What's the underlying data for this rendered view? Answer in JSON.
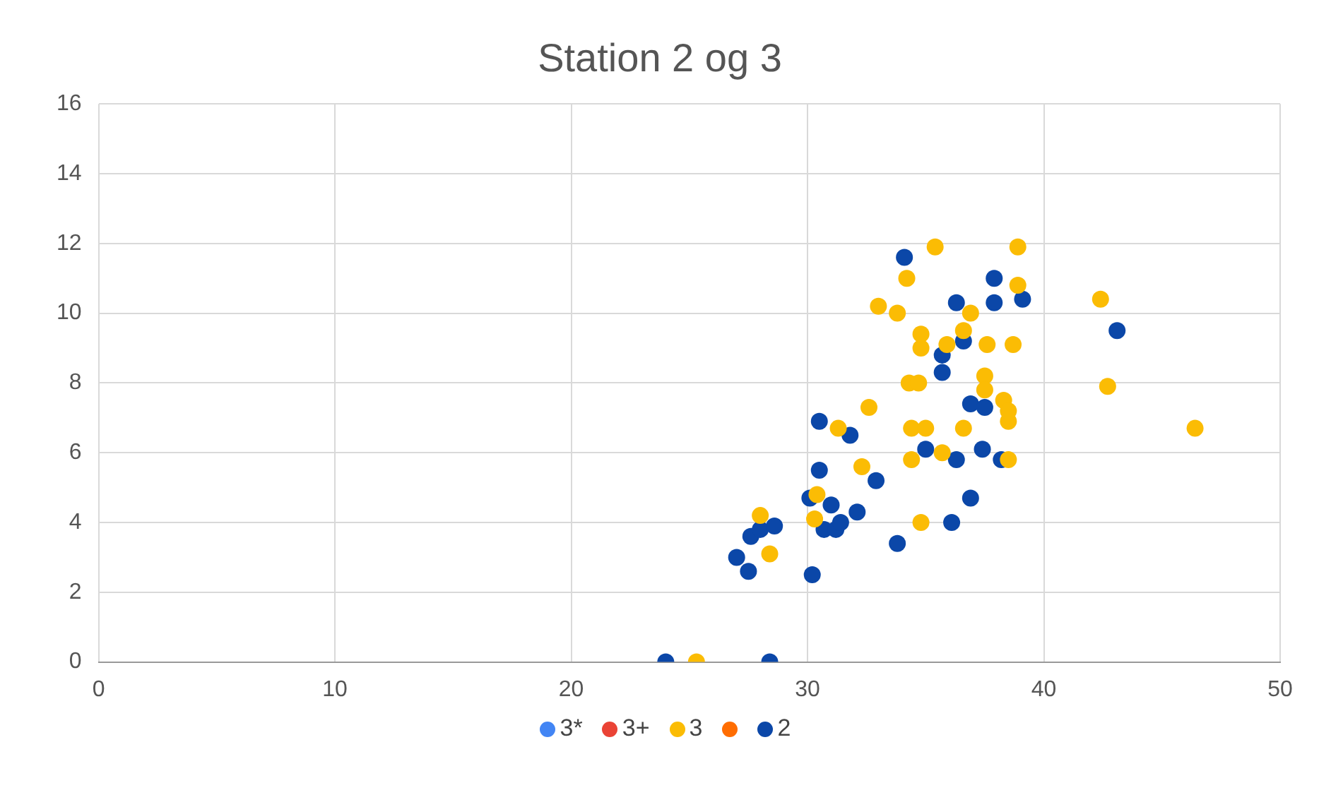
{
  "chart_data": {
    "type": "scatter",
    "title": "Station 2 og 3",
    "xlim": [
      0,
      50
    ],
    "xticks": [
      0,
      10,
      20,
      30,
      40,
      50
    ],
    "ylim": [
      0,
      16
    ],
    "yticks": [
      0,
      2,
      4,
      6,
      8,
      10,
      12,
      14,
      16
    ],
    "grid": true,
    "legend": "bottom",
    "marker": "circle",
    "series": [
      {
        "name": "3*",
        "color": "#4285f4"
      },
      {
        "name": "3+",
        "color": "#ea4335"
      },
      {
        "name": "3",
        "color": "#fbbc04",
        "x": [
          25.3,
          28.4,
          28.0,
          30.3,
          30.4,
          31.3,
          32.3,
          32.6,
          33.0,
          33.8,
          34.2,
          35.4,
          34.4,
          34.4,
          34.3,
          34.7,
          34.8,
          34.8,
          34.8,
          35.0,
          35.7,
          35.9,
          36.6,
          36.6,
          36.9,
          37.6,
          37.5,
          37.5,
          38.3,
          38.5,
          38.5,
          38.5,
          38.9,
          38.9,
          38.7,
          42.4,
          42.7,
          46.4
        ],
        "values": [
          0,
          3.1,
          4.2,
          4.1,
          4.8,
          6.7,
          5.6,
          7.3,
          10.2,
          10.0,
          11.0,
          11.9,
          6.7,
          5.8,
          8.0,
          8.0,
          9.0,
          9.4,
          4.0,
          6.7,
          6.0,
          9.1,
          6.7,
          9.5,
          10.0,
          9.1,
          8.2,
          7.8,
          7.5,
          6.9,
          7.2,
          5.8,
          11.9,
          10.8,
          9.1,
          10.4,
          7.9,
          6.7
        ]
      },
      {
        "color": "#ff6d01"
      },
      {
        "name": "2",
        "color": "#0b47a8",
        "x": [
          24.0,
          28.4,
          27.0,
          27.5,
          27.6,
          28.0,
          28.6,
          30.2,
          30.1,
          30.5,
          30.5,
          30.7,
          31.0,
          31.2,
          31.4,
          32.1,
          31.8,
          32.9,
          33.8,
          34.1,
          35.0,
          35.7,
          35.7,
          36.1,
          36.3,
          36.3,
          36.6,
          36.9,
          36.9,
          37.4,
          37.5,
          37.9,
          37.9,
          38.2,
          39.1,
          43.1
        ],
        "values": [
          0,
          0,
          3.0,
          2.6,
          3.6,
          3.8,
          3.9,
          2.5,
          4.7,
          6.9,
          5.5,
          3.8,
          4.5,
          3.8,
          4.0,
          4.3,
          6.5,
          5.2,
          3.4,
          11.6,
          6.1,
          8.8,
          8.3,
          4.0,
          5.8,
          10.3,
          9.2,
          4.7,
          7.4,
          6.1,
          7.3,
          11.0,
          10.3,
          5.8,
          10.4,
          9.5
        ]
      }
    ]
  }
}
